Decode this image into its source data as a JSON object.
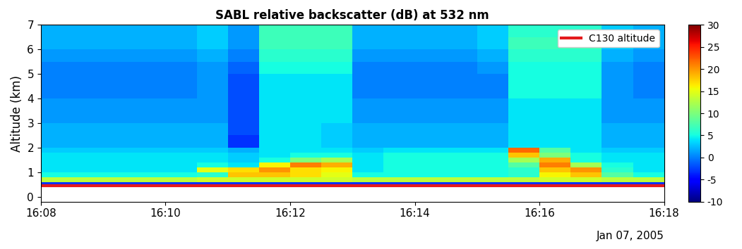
{
  "chart_data": {
    "type": "heatmap",
    "title": "SABL relative backscatter (dB) at 532 nm",
    "y_label": "Altitude (km)",
    "annotations": [
      "Jan 07, 2005"
    ],
    "xlim": [
      968,
      978
    ],
    "xticks": [
      {
        "value": 968,
        "label": "16:08"
      },
      {
        "value": 970,
        "label": "16:10"
      },
      {
        "value": 972,
        "label": "16:12"
      },
      {
        "value": 974,
        "label": "16:14"
      },
      {
        "value": 976,
        "label": "16:16"
      },
      {
        "value": 978,
        "label": "16:18"
      }
    ],
    "ylim": [
      -0.2,
      7
    ],
    "yticks": [
      0,
      1,
      2,
      3,
      4,
      5,
      6,
      7
    ],
    "x_edges": [
      968,
      968.5,
      969,
      969.5,
      970,
      970.5,
      971,
      971.5,
      972,
      972.5,
      973,
      973.5,
      974,
      974.5,
      975,
      975.5,
      976,
      976.5,
      977,
      977.5,
      978
    ],
    "y_edges": [
      0.5,
      0.6,
      0.8,
      1.0,
      1.2,
      1.4,
      1.6,
      1.8,
      2.0,
      2.5,
      3,
      3.5,
      4,
      4.5,
      5,
      5.5,
      6,
      6.5,
      7
    ],
    "cells": [
      [
        -3,
        -3,
        -3,
        -3,
        -3,
        -3,
        -3,
        -3,
        -3,
        -3,
        -3,
        -3,
        -3,
        -3,
        -3,
        -3,
        -3,
        -3,
        -3,
        -3
      ],
      [
        13,
        13,
        13,
        13,
        13,
        14,
        14,
        14,
        14,
        14,
        13,
        13,
        13,
        13,
        13,
        13,
        14,
        14,
        13,
        13
      ],
      [
        5,
        5,
        5,
        5,
        5,
        6,
        18,
        18,
        17,
        15,
        5,
        5,
        5,
        5,
        5,
        6,
        16,
        18,
        8,
        5
      ],
      [
        4,
        4,
        4,
        4,
        4,
        15,
        17,
        20,
        17,
        16,
        4,
        5,
        5,
        5,
        5,
        6,
        18,
        20,
        6,
        4
      ],
      [
        4,
        4,
        4,
        4,
        4,
        5,
        4,
        16,
        21,
        19,
        4,
        5,
        5,
        5,
        5,
        8,
        21,
        12,
        5,
        4
      ],
      [
        4,
        4,
        4,
        4,
        4,
        4,
        3,
        5,
        10,
        12,
        4,
        5,
        5,
        5,
        5,
        12,
        19,
        5,
        4,
        4
      ],
      [
        4,
        4,
        4,
        4,
        4,
        4,
        3,
        4,
        5,
        5,
        4,
        5,
        5,
        5,
        5,
        18,
        10,
        5,
        4,
        4
      ],
      [
        3,
        3,
        3,
        3,
        3,
        3,
        2,
        4,
        4,
        4,
        3,
        4,
        4,
        4,
        4,
        22,
        8,
        4,
        3,
        3
      ],
      [
        2,
        2,
        2,
        2,
        2,
        2,
        -3,
        4,
        4,
        3,
        2,
        2,
        2,
        2,
        2,
        4,
        4,
        4,
        2,
        2
      ],
      [
        2,
        2,
        2,
        2,
        2,
        2,
        -2,
        4,
        4,
        3,
        2,
        2,
        2,
        2,
        2,
        4,
        4,
        4,
        2,
        2
      ],
      [
        1,
        1,
        1,
        1,
        1,
        1,
        -2,
        4,
        4,
        4,
        1,
        1,
        1,
        1,
        1,
        4,
        4,
        4,
        1,
        1
      ],
      [
        1,
        1,
        1,
        1,
        1,
        1,
        -2,
        4,
        4,
        4,
        1,
        1,
        1,
        1,
        1,
        4,
        4,
        4,
        1,
        1
      ],
      [
        0,
        0,
        0,
        0,
        0,
        1,
        -2,
        4,
        4,
        4,
        0,
        0,
        0,
        0,
        0,
        5,
        5,
        5,
        1,
        0
      ],
      [
        0,
        0,
        0,
        0,
        0,
        1,
        -2,
        4,
        4,
        4,
        0,
        0,
        0,
        0,
        0,
        5,
        5,
        5,
        1,
        0
      ],
      [
        0,
        0,
        0,
        0,
        0,
        1,
        -1,
        5,
        5,
        5,
        0,
        0,
        0,
        0,
        1,
        5,
        5,
        5,
        1,
        0
      ],
      [
        1,
        1,
        1,
        1,
        1,
        2,
        0,
        6,
        6,
        6,
        1,
        1,
        1,
        1,
        2,
        6,
        6,
        6,
        2,
        1
      ],
      [
        2,
        2,
        2,
        2,
        2,
        3,
        1,
        7,
        7,
        7,
        2,
        2,
        2,
        2,
        3,
        7,
        7,
        7,
        3,
        2
      ],
      [
        2,
        2,
        2,
        2,
        2,
        3,
        1,
        7,
        7,
        7,
        2,
        2,
        2,
        2,
        3,
        6,
        6,
        6,
        3,
        2
      ]
    ],
    "colorbar": {
      "lim": [
        -10,
        30
      ],
      "ticks": [
        -10,
        -5,
        0,
        5,
        10,
        15,
        20,
        25,
        30
      ]
    },
    "series": [
      {
        "name": "C130 altitude",
        "color": "#e41a1c",
        "type": "line",
        "x": [
          968,
          978
        ],
        "values": [
          0.45,
          0.45
        ]
      }
    ],
    "legend": "upper right"
  }
}
